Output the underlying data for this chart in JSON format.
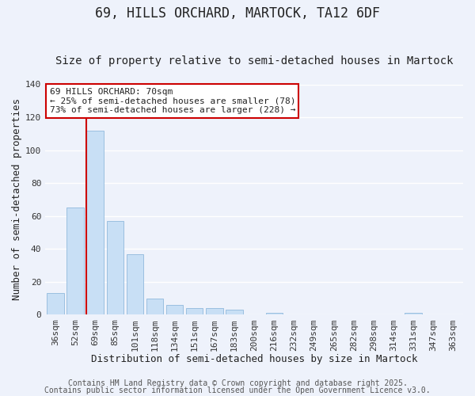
{
  "title": "69, HILLS ORCHARD, MARTOCK, TA12 6DF",
  "subtitle": "Size of property relative to semi-detached houses in Martock",
  "xlabel": "Distribution of semi-detached houses by size in Martock",
  "ylabel": "Number of semi-detached properties",
  "bar_labels": [
    "36sqm",
    "52sqm",
    "69sqm",
    "85sqm",
    "101sqm",
    "118sqm",
    "134sqm",
    "151sqm",
    "167sqm",
    "183sqm",
    "200sqm",
    "216sqm",
    "232sqm",
    "249sqm",
    "265sqm",
    "282sqm",
    "298sqm",
    "314sqm",
    "331sqm",
    "347sqm",
    "363sqm"
  ],
  "bar_values": [
    13,
    65,
    112,
    57,
    37,
    10,
    6,
    4,
    4,
    3,
    0,
    1,
    0,
    0,
    0,
    0,
    0,
    0,
    1,
    0,
    0
  ],
  "bar_color": "#c8dff5",
  "bar_edge_color": "#9bbfe0",
  "vline_color": "#cc0000",
  "vline_bar_index": 2,
  "ylim": [
    0,
    140
  ],
  "yticks": [
    0,
    20,
    40,
    60,
    80,
    100,
    120,
    140
  ],
  "annotation_line1": "69 HILLS ORCHARD: 70sqm",
  "annotation_line2": "← 25% of semi-detached houses are smaller (78)",
  "annotation_line3": "73% of semi-detached houses are larger (228) →",
  "annotation_box_color": "#ffffff",
  "annotation_box_edge": "#cc0000",
  "footer_line1": "Contains HM Land Registry data © Crown copyright and database right 2025.",
  "footer_line2": "Contains public sector information licensed under the Open Government Licence v3.0.",
  "background_color": "#eef2fb",
  "grid_color": "#ffffff",
  "title_fontsize": 12,
  "subtitle_fontsize": 10,
  "axis_label_fontsize": 9,
  "tick_fontsize": 8,
  "annotation_fontsize": 8,
  "footer_fontsize": 7
}
